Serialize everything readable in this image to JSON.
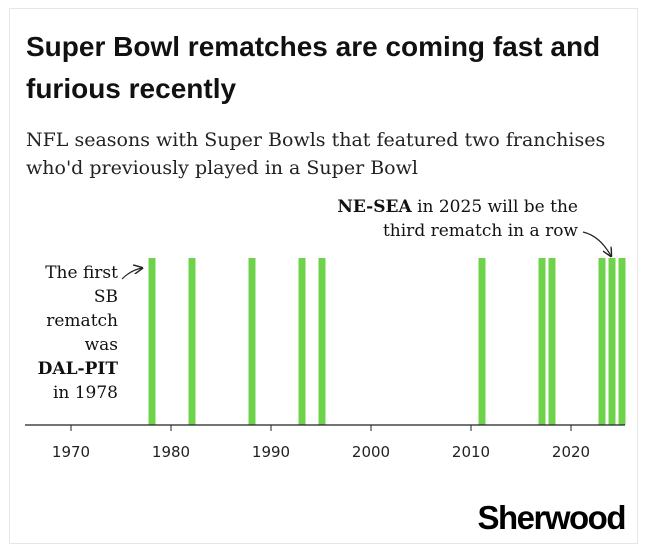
{
  "title": "Super Bowl rematches are coming fast and furious recently",
  "subtitle": "NFL seasons with Super Bowls that featured two franchises who'd previously played in a Super Bowl",
  "annotations": {
    "left": {
      "line1": "The first",
      "line2": "SB",
      "line3": "rematch",
      "line4": "was",
      "line5": "DAL-PIT",
      "line6": "in 1978"
    },
    "right": {
      "bold_part": "NE-SEA",
      "rest_line1": " in 2025 will be the",
      "line2": "third rematch in a row"
    }
  },
  "logo": "Sherwood",
  "colors": {
    "bar": "#6ed34b",
    "axis": "#222222",
    "text": "#111111"
  },
  "chart_data": {
    "type": "bar",
    "title": "Super Bowl rematches are coming fast and furious recently",
    "subtitle": "NFL seasons with Super Bowls that featured two franchises who'd previously played in a Super Bowl",
    "xlabel": "",
    "ylabel": "",
    "xlim": [
      1964,
      2026
    ],
    "x_ticks": [
      1970,
      1980,
      1990,
      2000,
      2010,
      2020
    ],
    "x_tick_labels": [
      "1970",
      "1980",
      "1990",
      "2000",
      "2010",
      "2020"
    ],
    "years_with_rematch": [
      1978,
      1982,
      1988,
      1993,
      1995,
      2011,
      2017,
      2018,
      2023,
      2024,
      2025
    ],
    "values": [
      1,
      1,
      1,
      1,
      1,
      1,
      1,
      1,
      1,
      1,
      1
    ],
    "grid": false,
    "legend": "none"
  }
}
